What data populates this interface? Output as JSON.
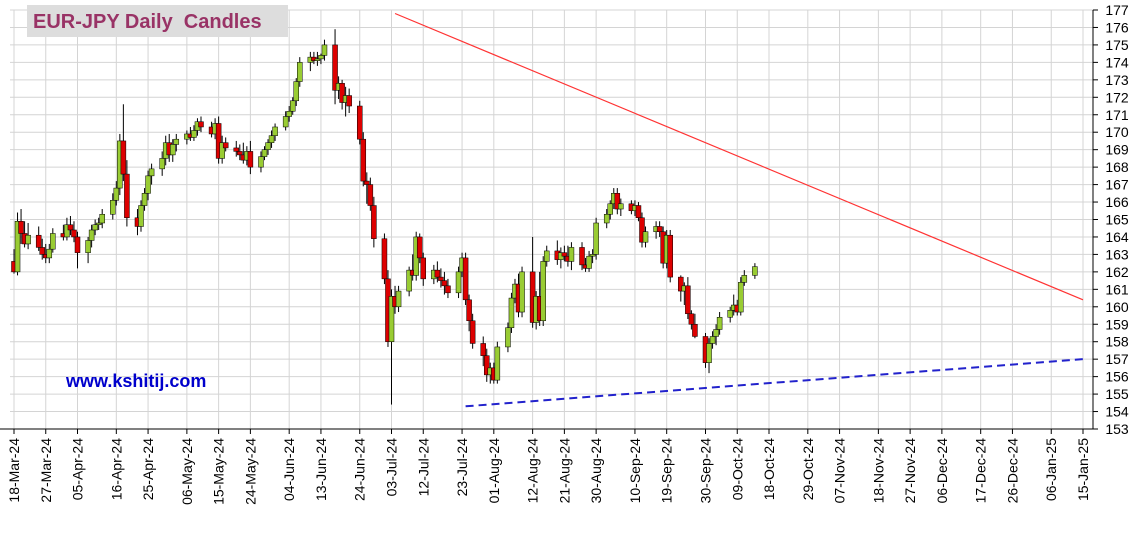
{
  "chart_data": {
    "type": "candlestick",
    "title": "EUR-JPY Daily  Candles",
    "watermark": "www.kshitij.com",
    "ylim": [
      153,
      177
    ],
    "y_ticks": [
      153,
      154,
      155,
      156,
      157,
      158,
      159,
      160,
      161,
      162,
      163,
      164,
      165,
      166,
      167,
      168,
      169,
      170,
      171,
      172,
      173,
      174,
      175,
      176,
      177
    ],
    "x_tick_labels": [
      "18-Mar-24",
      "27-Mar-24",
      "05-Apr-24",
      "16-Apr-24",
      "25-Apr-24",
      "06-May-24",
      "15-May-24",
      "24-May-24",
      "04-Jun-24",
      "13-Jun-24",
      "24-Jun-24",
      "03-Jul-24",
      "12-Jul-24",
      "23-Jul-24",
      "01-Aug-24",
      "12-Aug-24",
      "21-Aug-24",
      "30-Aug-24",
      "10-Sep-24",
      "19-Sep-24",
      "30-Sep-24",
      "09-Oct-24",
      "18-Oct-24",
      "29-Oct-24",
      "07-Nov-24",
      "18-Nov-24",
      "27-Nov-24",
      "06-Dec-24",
      "17-Dec-24",
      "26-Dec-24",
      "06-Jan-25",
      "15-Jan-25"
    ],
    "colors": {
      "up": "#99cc33",
      "down": "#dd0000",
      "wick": "#000000",
      "resistance": "#ff3333",
      "support": "#2222cc",
      "grid": "#d4d4d4",
      "title_bg": "#dddddd",
      "title_text": "#993366",
      "watermark_text": "#0000cc"
    },
    "candles": [
      [
        162.6,
        163.3,
        161.9,
        162.0
      ],
      [
        162.0,
        165.4,
        161.8,
        164.9
      ],
      [
        164.9,
        165.6,
        163.6,
        164.2
      ],
      [
        164.2,
        164.9,
        163.4,
        163.6
      ],
      [
        163.6,
        164.8,
        163.3,
        164.1
      ],
      [
        164.1,
        164.6,
        163.2,
        163.4
      ],
      [
        163.4,
        163.9,
        162.7,
        163.0
      ],
      [
        163.0,
        163.6,
        162.5,
        162.8
      ],
      [
        162.8,
        163.6,
        162.5,
        163.3
      ],
      [
        163.3,
        164.5,
        163.1,
        164.2
      ],
      [
        164.2,
        164.7,
        163.8,
        164.0
      ],
      [
        164.0,
        165.1,
        163.8,
        164.7
      ],
      [
        164.7,
        165.2,
        164.1,
        164.4
      ],
      [
        164.4,
        164.9,
        163.7,
        164.0
      ],
      [
        164.0,
        164.3,
        162.2,
        163.1
      ],
      [
        163.1,
        164.0,
        162.5,
        163.8
      ],
      [
        163.8,
        164.7,
        163.4,
        164.4
      ],
      [
        164.4,
        165.0,
        164.1,
        164.7
      ],
      [
        164.7,
        165.1,
        164.4,
        164.8
      ],
      [
        164.8,
        165.6,
        164.5,
        165.3
      ],
      [
        165.3,
        166.5,
        165.0,
        166.1
      ],
      [
        166.1,
        167.2,
        165.8,
        166.8
      ],
      [
        166.8,
        169.9,
        166.4,
        169.5
      ],
      [
        169.5,
        171.6,
        167.2,
        167.6
      ],
      [
        167.6,
        168.4,
        164.6,
        165.1
      ],
      [
        165.1,
        165.6,
        164.1,
        164.6
      ],
      [
        164.6,
        166.1,
        164.3,
        165.8
      ],
      [
        165.8,
        166.8,
        165.5,
        166.5
      ],
      [
        166.5,
        167.8,
        166.1,
        167.5
      ],
      [
        167.5,
        168.2,
        167.0,
        167.9
      ],
      [
        167.9,
        168.9,
        167.5,
        168.5
      ],
      [
        168.5,
        169.8,
        168.1,
        169.4
      ],
      [
        169.4,
        169.9,
        168.3,
        168.7
      ],
      [
        168.7,
        169.6,
        168.3,
        169.3
      ],
      [
        169.3,
        169.9,
        168.9,
        169.6
      ],
      [
        169.6,
        170.1,
        169.3,
        169.9
      ],
      [
        169.9,
        170.3,
        169.5,
        169.7
      ],
      [
        169.7,
        170.4,
        169.5,
        170.1
      ],
      [
        170.1,
        170.8,
        169.8,
        170.6
      ],
      [
        170.6,
        170.9,
        170.0,
        170.3
      ],
      [
        170.3,
        170.6,
        169.7,
        169.9
      ],
      [
        169.9,
        170.8,
        169.6,
        170.5
      ],
      [
        170.5,
        170.9,
        168.2,
        168.5
      ],
      [
        168.5,
        169.8,
        168.2,
        169.4
      ],
      [
        169.4,
        169.7,
        168.9,
        169.1
      ],
      [
        169.1,
        169.5,
        168.6,
        168.9
      ],
      [
        168.9,
        169.3,
        168.4,
        168.7
      ],
      [
        168.7,
        169.4,
        168.2,
        168.4
      ],
      [
        168.4,
        169.2,
        168.1,
        168.9
      ],
      [
        168.9,
        169.5,
        167.6,
        168.0
      ],
      [
        168.0,
        168.9,
        167.7,
        168.6
      ],
      [
        168.6,
        169.2,
        168.4,
        169.0
      ],
      [
        169.0,
        169.6,
        168.7,
        169.4
      ],
      [
        169.4,
        170.1,
        169.1,
        169.8
      ],
      [
        169.8,
        170.5,
        169.5,
        170.3
      ],
      [
        170.3,
        171.2,
        170.1,
        170.9
      ],
      [
        170.9,
        171.5,
        170.6,
        171.2
      ],
      [
        171.2,
        172.0,
        171.0,
        171.8
      ],
      [
        171.8,
        173.1,
        171.5,
        172.9
      ],
      [
        172.9,
        174.3,
        172.6,
        174.0
      ],
      [
        174.0,
        174.6,
        173.5,
        174.3
      ],
      [
        174.3,
        174.6,
        173.9,
        174.1
      ],
      [
        174.1,
        174.6,
        173.8,
        174.2
      ],
      [
        174.2,
        174.5,
        173.9,
        174.4
      ],
      [
        174.4,
        175.3,
        174.1,
        175.0
      ],
      [
        175.0,
        175.9,
        171.6,
        172.4
      ],
      [
        172.4,
        173.2,
        171.9,
        172.8
      ],
      [
        172.8,
        173.0,
        171.3,
        171.7
      ],
      [
        171.7,
        172.6,
        170.9,
        172.1
      ],
      [
        172.1,
        172.5,
        171.1,
        171.5
      ],
      [
        171.5,
        171.8,
        169.3,
        169.6
      ],
      [
        169.6,
        170.0,
        166.9,
        167.2
      ],
      [
        167.2,
        167.7,
        165.9,
        167.0
      ],
      [
        167.0,
        167.4,
        165.5,
        165.8
      ],
      [
        165.8,
        166.3,
        163.4,
        163.9
      ],
      [
        163.9,
        164.2,
        161.3,
        161.6
      ],
      [
        161.6,
        162.1,
        157.7,
        158.0
      ],
      [
        158.0,
        161.0,
        154.4,
        160.6
      ],
      [
        160.6,
        161.2,
        159.6,
        160.0
      ],
      [
        160.0,
        161.2,
        159.7,
        160.9
      ],
      [
        160.9,
        162.3,
        160.6,
        162.1
      ],
      [
        162.1,
        163.0,
        161.5,
        161.8
      ],
      [
        161.8,
        164.3,
        161.5,
        164.0
      ],
      [
        164.0,
        164.2,
        162.5,
        162.8
      ],
      [
        162.8,
        163.1,
        161.2,
        161.6
      ],
      [
        161.6,
        162.4,
        161.3,
        162.1
      ],
      [
        162.1,
        162.6,
        161.4,
        161.7
      ],
      [
        161.7,
        162.2,
        161.1,
        161.5
      ],
      [
        161.5,
        162.0,
        160.7,
        161.2
      ],
      [
        161.2,
        161.6,
        160.5,
        160.8
      ],
      [
        160.8,
        162.3,
        160.5,
        162.0
      ],
      [
        162.0,
        163.1,
        161.7,
        162.8
      ],
      [
        162.8,
        163.1,
        160.1,
        160.4
      ],
      [
        160.4,
        160.7,
        158.6,
        159.2
      ],
      [
        159.2,
        159.6,
        157.6,
        157.9
      ],
      [
        157.9,
        158.3,
        156.6,
        157.2
      ],
      [
        157.2,
        157.6,
        155.7,
        156.1
      ],
      [
        156.1,
        156.8,
        155.6,
        156.5
      ],
      [
        156.5,
        156.8,
        155.6,
        155.8
      ],
      [
        155.8,
        158.0,
        155.6,
        157.7
      ],
      [
        157.7,
        159.1,
        157.4,
        158.8
      ],
      [
        158.8,
        160.8,
        158.5,
        160.5
      ],
      [
        160.5,
        161.6,
        160.2,
        161.3
      ],
      [
        161.3,
        161.9,
        159.4,
        159.7
      ],
      [
        159.7,
        162.3,
        159.4,
        162.0
      ],
      [
        162.0,
        164.0,
        158.8,
        159.1
      ],
      [
        159.1,
        160.9,
        158.7,
        160.6
      ],
      [
        160.6,
        162.0,
        158.9,
        159.2
      ],
      [
        159.2,
        162.9,
        158.9,
        162.6
      ],
      [
        162.6,
        163.5,
        162.3,
        163.2
      ],
      [
        163.2,
        163.8,
        162.4,
        162.7
      ],
      [
        162.7,
        163.4,
        162.2,
        163.1
      ],
      [
        163.1,
        163.5,
        162.6,
        162.9
      ],
      [
        162.9,
        163.5,
        162.3,
        162.6
      ],
      [
        162.6,
        163.7,
        162.1,
        163.4
      ],
      [
        163.4,
        163.7,
        162.1,
        162.4
      ],
      [
        162.4,
        162.8,
        162.0,
        162.2
      ],
      [
        162.2,
        163.2,
        162.0,
        162.9
      ],
      [
        162.9,
        163.3,
        162.5,
        163.0
      ],
      [
        163.0,
        165.1,
        162.7,
        164.8
      ],
      [
        164.8,
        165.6,
        164.5,
        165.3
      ],
      [
        165.3,
        166.1,
        165.0,
        165.9
      ],
      [
        165.9,
        166.8,
        165.6,
        166.5
      ],
      [
        166.5,
        166.8,
        165.3,
        165.6
      ],
      [
        165.6,
        166.2,
        165.2,
        165.9
      ],
      [
        165.9,
        166.1,
        165.3,
        165.5
      ],
      [
        165.5,
        166.1,
        165.2,
        165.8
      ],
      [
        165.8,
        166.0,
        164.9,
        165.1
      ],
      [
        165.1,
        165.4,
        163.4,
        163.7
      ],
      [
        163.7,
        164.6,
        163.4,
        164.3
      ],
      [
        164.3,
        164.9,
        163.9,
        164.6
      ],
      [
        164.6,
        164.9,
        164.0,
        164.3
      ],
      [
        164.3,
        164.6,
        162.2,
        162.5
      ],
      [
        162.5,
        164.4,
        162.2,
        164.1
      ],
      [
        164.1,
        164.4,
        161.4,
        161.7
      ],
      [
        161.7,
        161.8,
        160.3,
        160.9
      ],
      [
        160.9,
        161.4,
        160.1,
        161.2
      ],
      [
        161.2,
        161.7,
        159.3,
        159.6
      ],
      [
        159.6,
        159.8,
        158.7,
        159.0
      ],
      [
        159.0,
        159.6,
        158.2,
        158.3
      ],
      [
        158.3,
        158.5,
        156.5,
        156.8
      ],
      [
        156.8,
        158.2,
        156.2,
        157.9
      ],
      [
        157.9,
        158.6,
        157.6,
        158.3
      ],
      [
        158.3,
        159.0,
        157.8,
        158.7
      ],
      [
        158.7,
        159.7,
        158.4,
        159.4
      ],
      [
        159.4,
        160.0,
        159.1,
        159.8
      ],
      [
        159.8,
        160.7,
        159.5,
        160.1
      ],
      [
        160.1,
        160.4,
        159.5,
        159.7
      ],
      [
        159.7,
        161.7,
        159.5,
        161.4
      ],
      [
        161.4,
        162.1,
        161.2,
        161.8
      ],
      [
        161.8,
        162.5,
        161.6,
        162.3
      ]
    ],
    "trendlines": [
      {
        "name": "resistance",
        "from": [
          "04-Jul-24",
          176.8
        ],
        "to": [
          "15-Jan-25",
          160.4
        ]
      },
      {
        "name": "support",
        "from": [
          "24-Jul-24",
          154.3
        ],
        "to": [
          "15-Jan-25",
          157.0
        ]
      }
    ]
  }
}
